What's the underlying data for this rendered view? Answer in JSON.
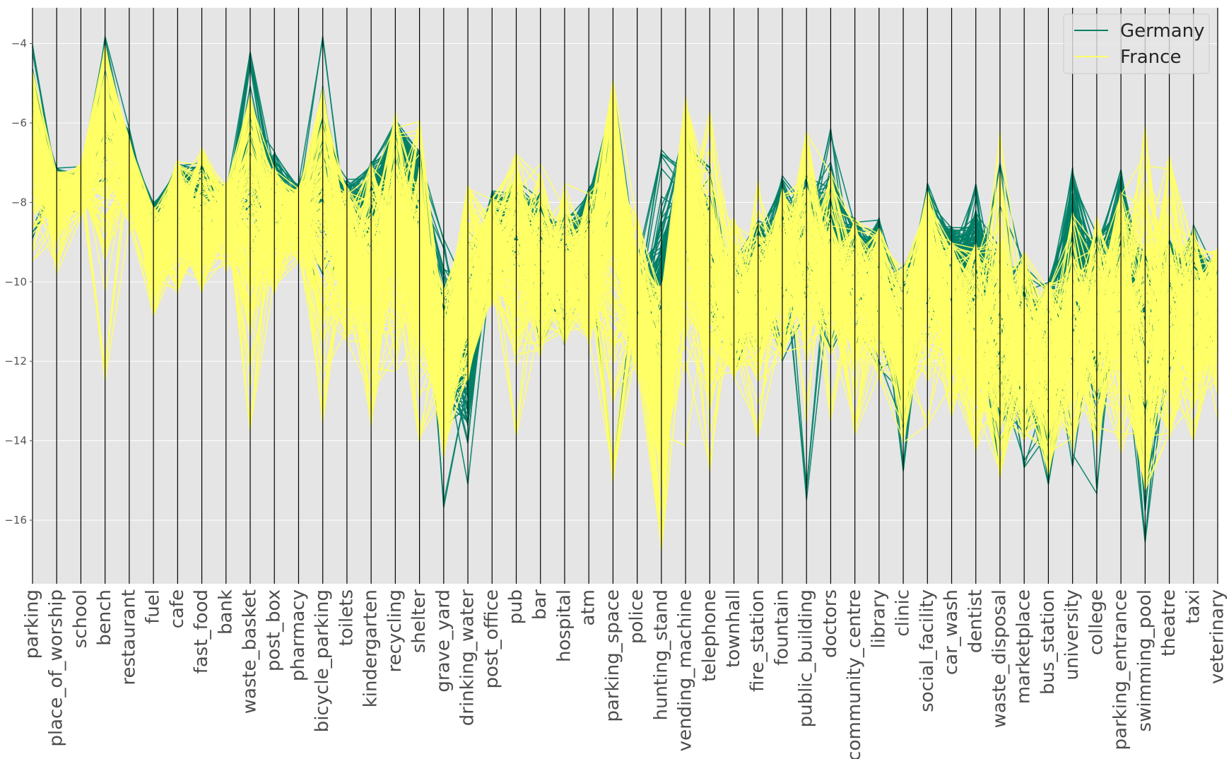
{
  "chart_data": {
    "type": "parallel_coordinates",
    "ylim": [
      -17.6,
      -3.1
    ],
    "yticks": [
      -4,
      -6,
      -8,
      -10,
      -12,
      -14,
      -16
    ],
    "ytick_labels": [
      "−4",
      "−6",
      "−8",
      "−10",
      "−12",
      "−14",
      "−16"
    ],
    "grid": true,
    "legend_position": "top-right",
    "background_color": "#e5e5e5",
    "axes": [
      "parking",
      "place_of_worship",
      "school",
      "bench",
      "restaurant",
      "fuel",
      "cafe",
      "fast_food",
      "bank",
      "waste_basket",
      "post_box",
      "pharmacy",
      "bicycle_parking",
      "toilets",
      "kindergarten",
      "recycling",
      "shelter",
      "grave_yard",
      "drinking_water",
      "post_office",
      "pub",
      "bar",
      "hospital",
      "atm",
      "parking_space",
      "police",
      "hunting_stand",
      "vending_machine",
      "telephone",
      "townhall",
      "fire_station",
      "fountain",
      "public_building",
      "doctors",
      "community_centre",
      "library",
      "clinic",
      "social_facility",
      "car_wash",
      "dentist",
      "waste_disposal",
      "marketplace",
      "bus_station",
      "university",
      "college",
      "parking_entrance",
      "swimming_pool",
      "theatre",
      "taxi",
      "veterinary"
    ],
    "series": [
      {
        "name": "Germany",
        "color": "#007f66",
        "mean": [
          -5.6,
          -7.7,
          -7.6,
          -5.8,
          -7.0,
          -8.8,
          -7.6,
          -7.7,
          -8.1,
          -6.9,
          -7.9,
          -8.2,
          -7.3,
          -8.5,
          -8.1,
          -6.8,
          -7.6,
          -12.0,
          -11.6,
          -8.8,
          -8.2,
          -9.4,
          -9.6,
          -8.8,
          -7.2,
          -10.6,
          -10.7,
          -7.2,
          -9.6,
          -10.8,
          -9.7,
          -8.9,
          -9.1,
          -8.9,
          -9.5,
          -9.9,
          -11.8,
          -9.0,
          -9.6,
          -9.6,
          -11.6,
          -11.3,
          -12.2,
          -9.8,
          -10.6,
          -9.2,
          -11.8,
          -10.5,
          -10.0,
          -10.6
        ],
        "spread": [
          0.45,
          0.35,
          0.3,
          0.5,
          0.4,
          0.4,
          0.4,
          0.4,
          0.35,
          0.7,
          0.45,
          0.35,
          0.8,
          0.55,
          0.6,
          0.55,
          0.6,
          0.9,
          1.1,
          0.5,
          0.5,
          0.8,
          0.6,
          0.6,
          0.9,
          0.7,
          1.3,
          0.6,
          0.7,
          0.7,
          0.7,
          0.6,
          0.7,
          0.8,
          0.6,
          0.7,
          1.0,
          0.7,
          0.6,
          0.8,
          1.2,
          1.1,
          1.2,
          1.2,
          1.1,
          0.9,
          1.5,
          0.7,
          0.6,
          0.7
        ],
        "min": [
          -9.0,
          -8.6,
          -8.2,
          -7.6,
          -8.1,
          -9.7,
          -9.0,
          -8.8,
          -8.8,
          -9.4,
          -9.4,
          -9.0,
          -11.0,
          -11.0,
          -9.8,
          -8.8,
          -9.2,
          -15.8,
          -15.4,
          -10.0,
          -9.6,
          -11.8,
          -11.6,
          -10.3,
          -14.8,
          -12.0,
          -14.5,
          -9.5,
          -11.6,
          -12.6,
          -11.9,
          -12.0,
          -15.5,
          -11.9,
          -11.9,
          -12.2,
          -14.9,
          -11.6,
          -11.2,
          -12.0,
          -15.1,
          -14.7,
          -15.1,
          -14.7,
          -15.5,
          -12.0,
          -16.8,
          -12.4,
          -12.0,
          -11.7
        ],
        "max": [
          -4.0,
          -7.1,
          -7.1,
          -3.8,
          -6.1,
          -8.0,
          -7.0,
          -6.9,
          -7.6,
          -4.2,
          -6.7,
          -7.5,
          -3.7,
          -7.4,
          -6.9,
          -5.9,
          -6.7,
          -8.8,
          -8.6,
          -7.7,
          -7.4,
          -7.7,
          -8.3,
          -7.6,
          -4.9,
          -9.4,
          -6.6,
          -5.6,
          -7.1,
          -9.2,
          -8.4,
          -7.3,
          -7.2,
          -5.8,
          -8.4,
          -8.3,
          -9.6,
          -7.5,
          -8.6,
          -7.5,
          -6.8,
          -9.3,
          -10.0,
          -7.1,
          -8.8,
          -7.1,
          -9.3,
          -8.9,
          -8.4,
          -9.5
        ],
        "line_count": 170
      },
      {
        "name": "France",
        "color": "#ffff66",
        "mean": [
          -6.7,
          -8.0,
          -7.6,
          -6.6,
          -7.2,
          -9.3,
          -8.3,
          -8.4,
          -8.3,
          -8.3,
          -8.5,
          -8.4,
          -8.5,
          -9.3,
          -9.6,
          -8.8,
          -9.6,
          -12.3,
          -10.2,
          -9.2,
          -9.3,
          -9.7,
          -9.8,
          -9.7,
          -8.5,
          -10.6,
          -12.3,
          -8.4,
          -10.0,
          -10.8,
          -10.4,
          -9.6,
          -9.4,
          -9.9,
          -10.3,
          -10.3,
          -11.7,
          -9.7,
          -10.7,
          -11.6,
          -11.4,
          -11.7,
          -12.0,
          -11.2,
          -11.1,
          -10.7,
          -11.3,
          -11.0,
          -11.0,
          -10.6
        ],
        "spread": [
          0.9,
          0.5,
          0.4,
          1.2,
          0.6,
          0.6,
          0.8,
          0.9,
          0.6,
          1.5,
          0.8,
          0.5,
          1.7,
          1.0,
          1.4,
          1.3,
          1.3,
          1.1,
          1.2,
          0.8,
          1.1,
          1.0,
          0.8,
          0.9,
          2.1,
          1.0,
          1.6,
          1.6,
          1.5,
          0.9,
          0.9,
          1.0,
          1.3,
          0.9,
          1.0,
          0.9,
          1.1,
          1.3,
          1.1,
          1.3,
          1.6,
          1.2,
          1.3,
          1.2,
          1.1,
          1.3,
          2.0,
          1.3,
          1.2,
          1.0
        ],
        "min": [
          -9.6,
          -9.8,
          -8.4,
          -12.5,
          -8.6,
          -11.1,
          -10.4,
          -10.4,
          -9.9,
          -13.9,
          -10.4,
          -9.5,
          -13.6,
          -11.5,
          -13.7,
          -12.5,
          -14.1,
          -14.5,
          -12.5,
          -10.6,
          -13.9,
          -12.5,
          -11.6,
          -11.6,
          -15.1,
          -12.5,
          -16.8,
          -14.3,
          -14.9,
          -12.5,
          -14.0,
          -12.0,
          -13.8,
          -13.5,
          -13.9,
          -12.5,
          -14.1,
          -13.8,
          -13.5,
          -14.3,
          -15.0,
          -14.0,
          -14.9,
          -14.3,
          -14.2,
          -14.4,
          -15.3,
          -14.0,
          -14.2,
          -13.6
        ],
        "max": [
          -4.7,
          -7.2,
          -7.0,
          -4.0,
          -6.4,
          -8.1,
          -6.9,
          -6.6,
          -7.5,
          -5.3,
          -7.1,
          -7.6,
          -5.1,
          -7.6,
          -7.0,
          -5.6,
          -5.8,
          -10.2,
          -7.5,
          -7.9,
          -6.7,
          -7.0,
          -7.5,
          -7.7,
          -4.9,
          -8.3,
          -10.1,
          -5.3,
          -5.7,
          -8.1,
          -7.4,
          -7.6,
          -6.2,
          -7.2,
          -8.4,
          -8.6,
          -9.6,
          -7.7,
          -9.0,
          -9.0,
          -6.0,
          -9.2,
          -10.0,
          -8.2,
          -8.3,
          -7.6,
          -6.0,
          -6.8,
          -8.6,
          -9.1
        ],
        "line_count": 210
      }
    ]
  }
}
